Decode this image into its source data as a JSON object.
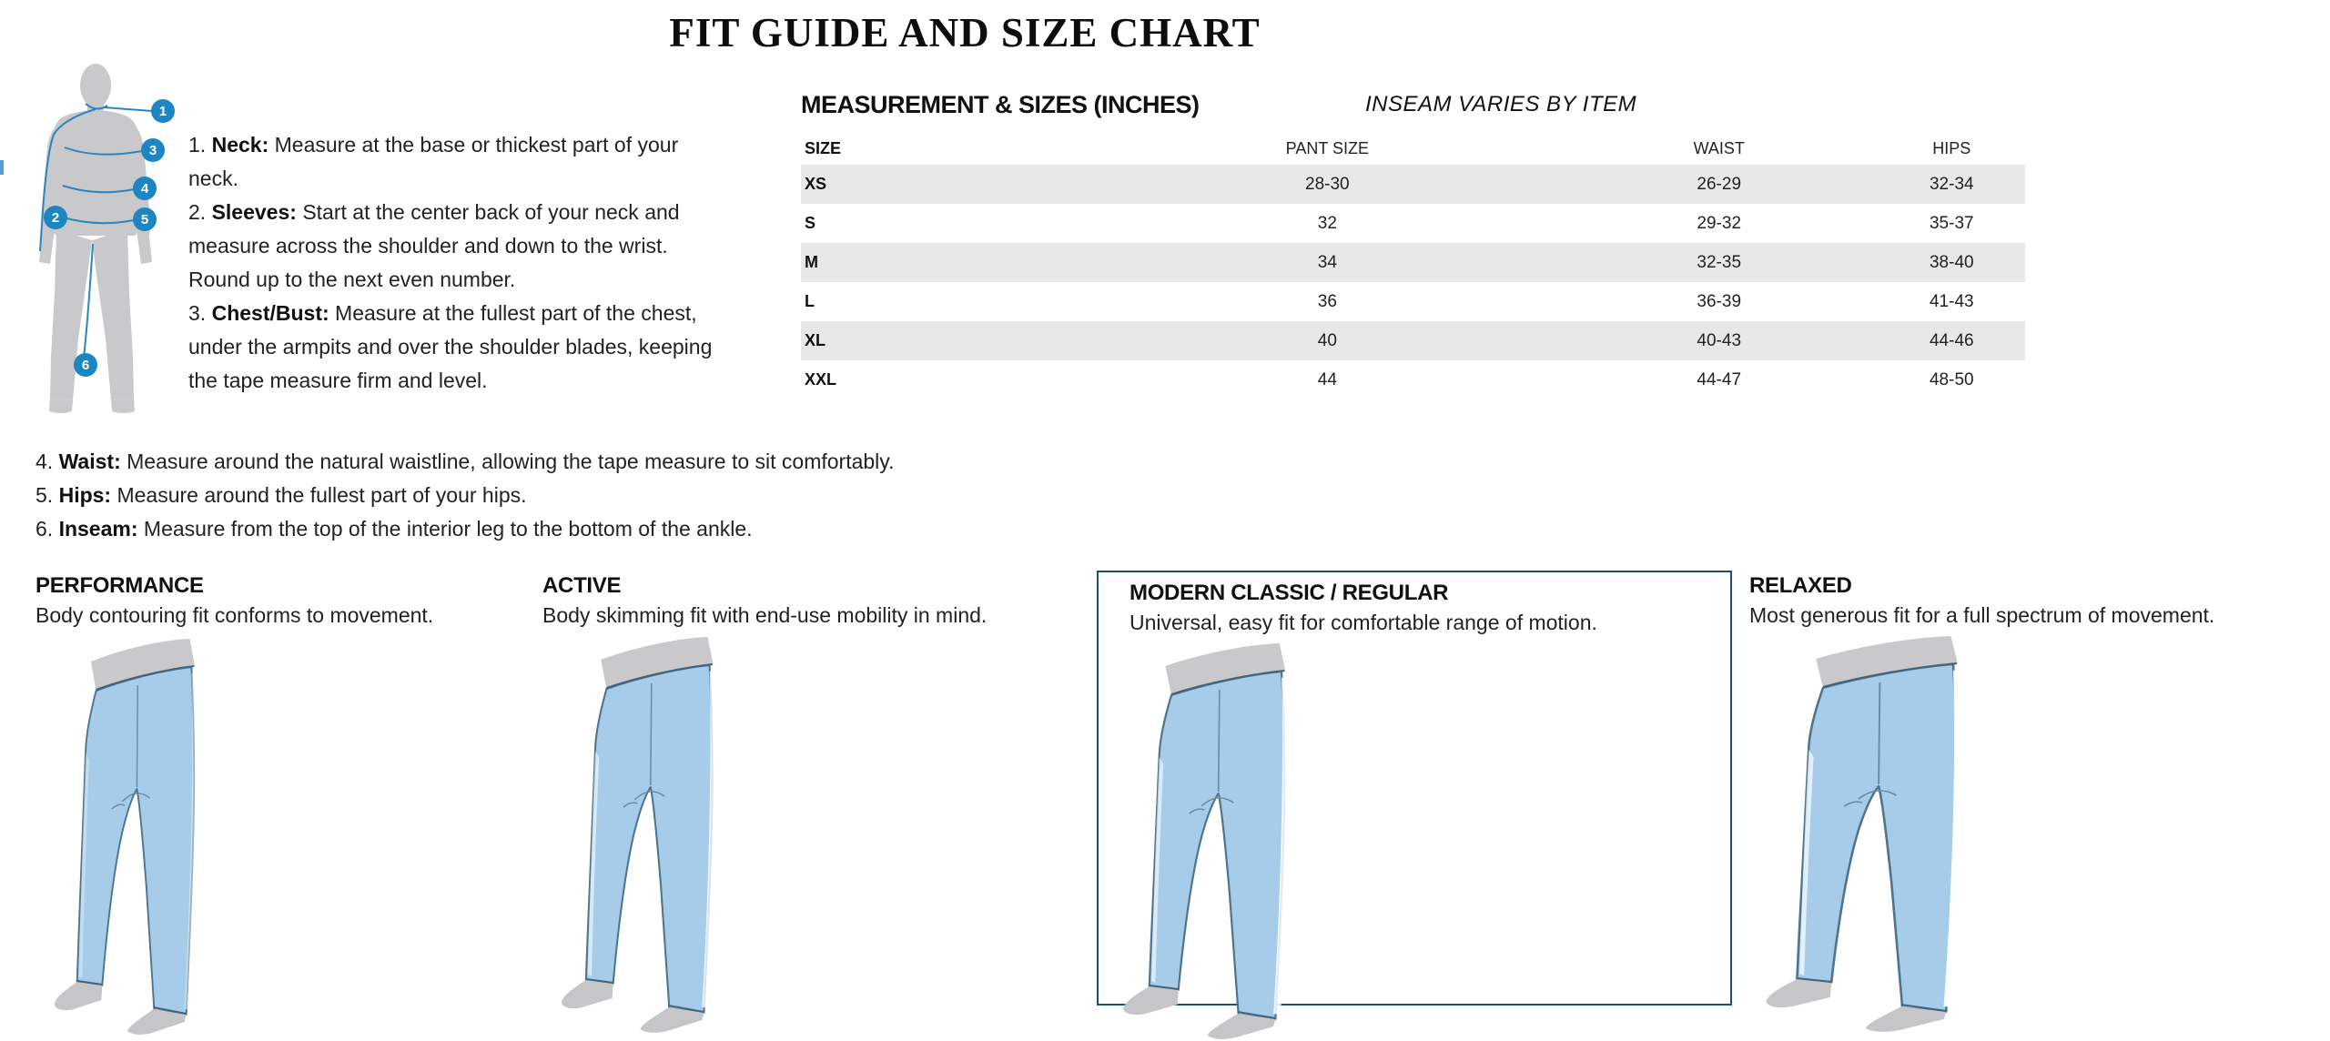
{
  "page": {
    "title": "FIT GUIDE AND SIZE CHART"
  },
  "diagram": {
    "name": "body-measurement-diagram",
    "points": [
      "1",
      "2",
      "3",
      "4",
      "5",
      "6"
    ]
  },
  "instructions": [
    {
      "num": "1.",
      "label": "Neck:",
      "text": "Measure at the base or thickest part of your neck."
    },
    {
      "num": "2.",
      "label": "Sleeves:",
      "text": "Start at the center back of your neck and measure across the shoulder and down to the wrist. Round up to the next even number."
    },
    {
      "num": "3.",
      "label": "Chest/Bust:",
      "text": "Measure at the fullest part of the chest, under the armpits and over the shoulder blades, keeping the tape measure firm and level."
    },
    {
      "num": "4.",
      "label": "Waist:",
      "text": "Measure around the natural waistline, allowing the tape measure to sit comfortably."
    },
    {
      "num": "5.",
      "label": "Hips:",
      "text": "Measure around the fullest part of your hips."
    },
    {
      "num": "6.",
      "label": "Inseam:",
      "text": "Measure from the top of the interior leg to the bottom of the ankle."
    }
  ],
  "size_table": {
    "title": "MEASUREMENT & SIZES (INCHES)",
    "note": "INSEAM VARIES BY ITEM",
    "columns": [
      "SIZE",
      "PANT SIZE",
      "WAIST",
      "HIPS"
    ],
    "rows": [
      {
        "size": "XS",
        "pant_size": "28-30",
        "waist": "26-29",
        "hips": "32-34"
      },
      {
        "size": "S",
        "pant_size": "32",
        "waist": "29-32",
        "hips": "35-37"
      },
      {
        "size": "M",
        "pant_size": "34",
        "waist": "32-35",
        "hips": "38-40"
      },
      {
        "size": "L",
        "pant_size": "36",
        "waist": "36-39",
        "hips": "41-43"
      },
      {
        "size": "XL",
        "pant_size": "40",
        "waist": "40-43",
        "hips": "44-46"
      },
      {
        "size": "XXL",
        "pant_size": "44",
        "waist": "44-47",
        "hips": "48-50"
      }
    ]
  },
  "fits": [
    {
      "name": "PERFORMANCE",
      "description": "Body contouring fit conforms to movement.",
      "highlighted": false
    },
    {
      "name": "ACTIVE",
      "description": "Body skimming fit with end-use mobility in mind.",
      "highlighted": false
    },
    {
      "name": "MODERN CLASSIC / REGULAR",
      "description": "Universal, easy fit for comfortable range of motion.",
      "highlighted": true
    },
    {
      "name": "RELAXED",
      "description": "Most generous fit for a full spectrum of movement.",
      "highlighted": false
    }
  ],
  "colors": {
    "accent_blue": "#1b86c1",
    "silhouette_gray": "#c9c9cb",
    "pants_blue": "#a6cce9",
    "pants_outline": "#4f748e",
    "stripe_gray": "#e8e8e8",
    "box_border": "#1d4f6e"
  }
}
